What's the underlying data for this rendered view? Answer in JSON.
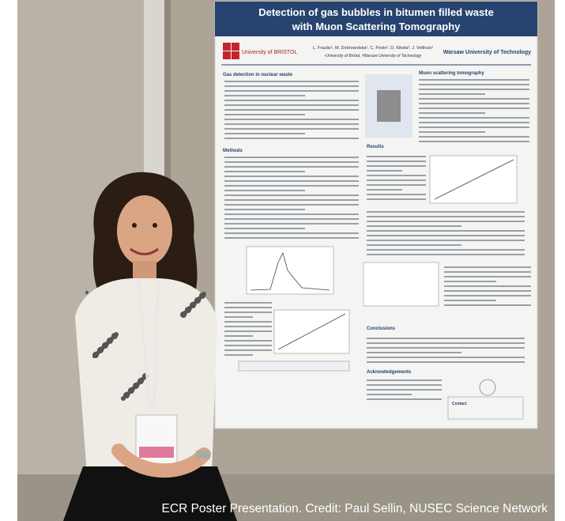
{
  "poster": {
    "title_line1": "Detection of gas bubbles in bitumen filled waste",
    "title_line2": "with Muon Scattering Tomography",
    "university_left": "University of BRISTOL",
    "university_right": "Warsaw University of Technology",
    "authors": "L. Frazão¹, M. Dobrowolska², C. Poole¹, D. Kikoła², J. Velthuis¹",
    "affiliations": "¹University of Bristol, ²Warsaw University of Technology",
    "sections": [
      "Gas detection in nuclear waste",
      "Muon scattering tomography",
      "Methods",
      "Results",
      "Conclusions",
      "Acknowledgements",
      "Contact"
    ]
  },
  "caption": "ECR Poster Presentation. Credit: Paul Sellin, NUSEC Science Network"
}
